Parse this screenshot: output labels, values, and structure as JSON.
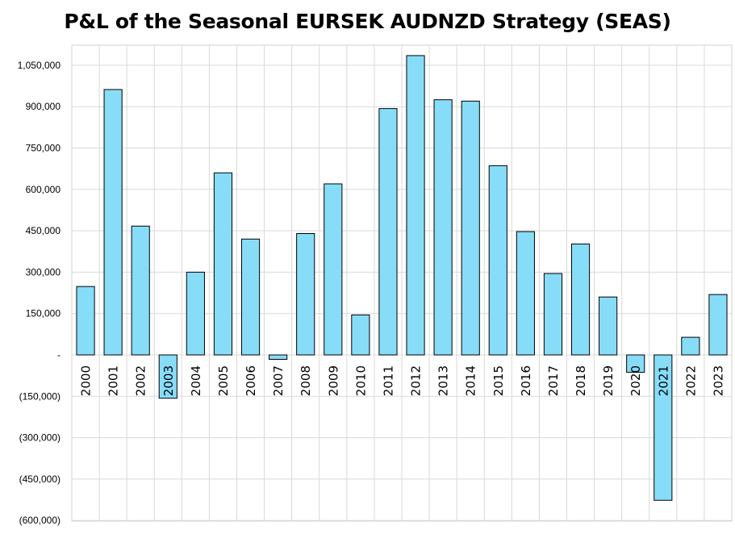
{
  "chart_data": {
    "type": "bar",
    "title": "P&L of the Seasonal EURSEK AUDNZD Strategy (SEAS)",
    "xlabel": "",
    "ylabel": "",
    "categories": [
      "2000",
      "2001",
      "2002",
      "2003",
      "2004",
      "2005",
      "2006",
      "2007",
      "2008",
      "2009",
      "2010",
      "2011",
      "2012",
      "2013",
      "2014",
      "2015",
      "2016",
      "2017",
      "2018",
      "2019",
      "2020",
      "2021",
      "2022",
      "2023"
    ],
    "values": [
      248000,
      962000,
      467000,
      -157000,
      300000,
      660000,
      420000,
      -16000,
      440000,
      620000,
      145000,
      893000,
      1085000,
      925000,
      920000,
      686000,
      447000,
      295000,
      402000,
      210000,
      -63000,
      -527000,
      64000,
      219000
    ],
    "ylim": [
      -600000,
      1100000
    ],
    "yticks": [
      -600000,
      -450000,
      -300000,
      -150000,
      0,
      150000,
      300000,
      450000,
      600000,
      750000,
      900000,
      1050000
    ],
    "ytick_labels": [
      "(600,000)",
      "(450,000)",
      "(300,000)",
      "(150,000)",
      "-",
      "150,000",
      "300,000",
      "450,000",
      "600,000",
      "750,000",
      "900,000",
      "1,050,000"
    ],
    "grid": true,
    "bar_color": "#87dcf8",
    "bar_edge_color": "#000000"
  }
}
